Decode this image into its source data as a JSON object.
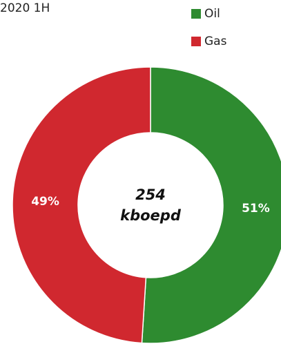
{
  "chart_data": {
    "type": "donut",
    "title": "2020 1H",
    "categories": [
      "Oil",
      "Gas"
    ],
    "values": [
      51,
      49
    ],
    "value_labels": [
      "51%",
      "49%"
    ],
    "colors": [
      "#2e8b30",
      "#d0282f"
    ],
    "center_text": [
      "254",
      "kboepd"
    ],
    "legend": "top-right"
  }
}
